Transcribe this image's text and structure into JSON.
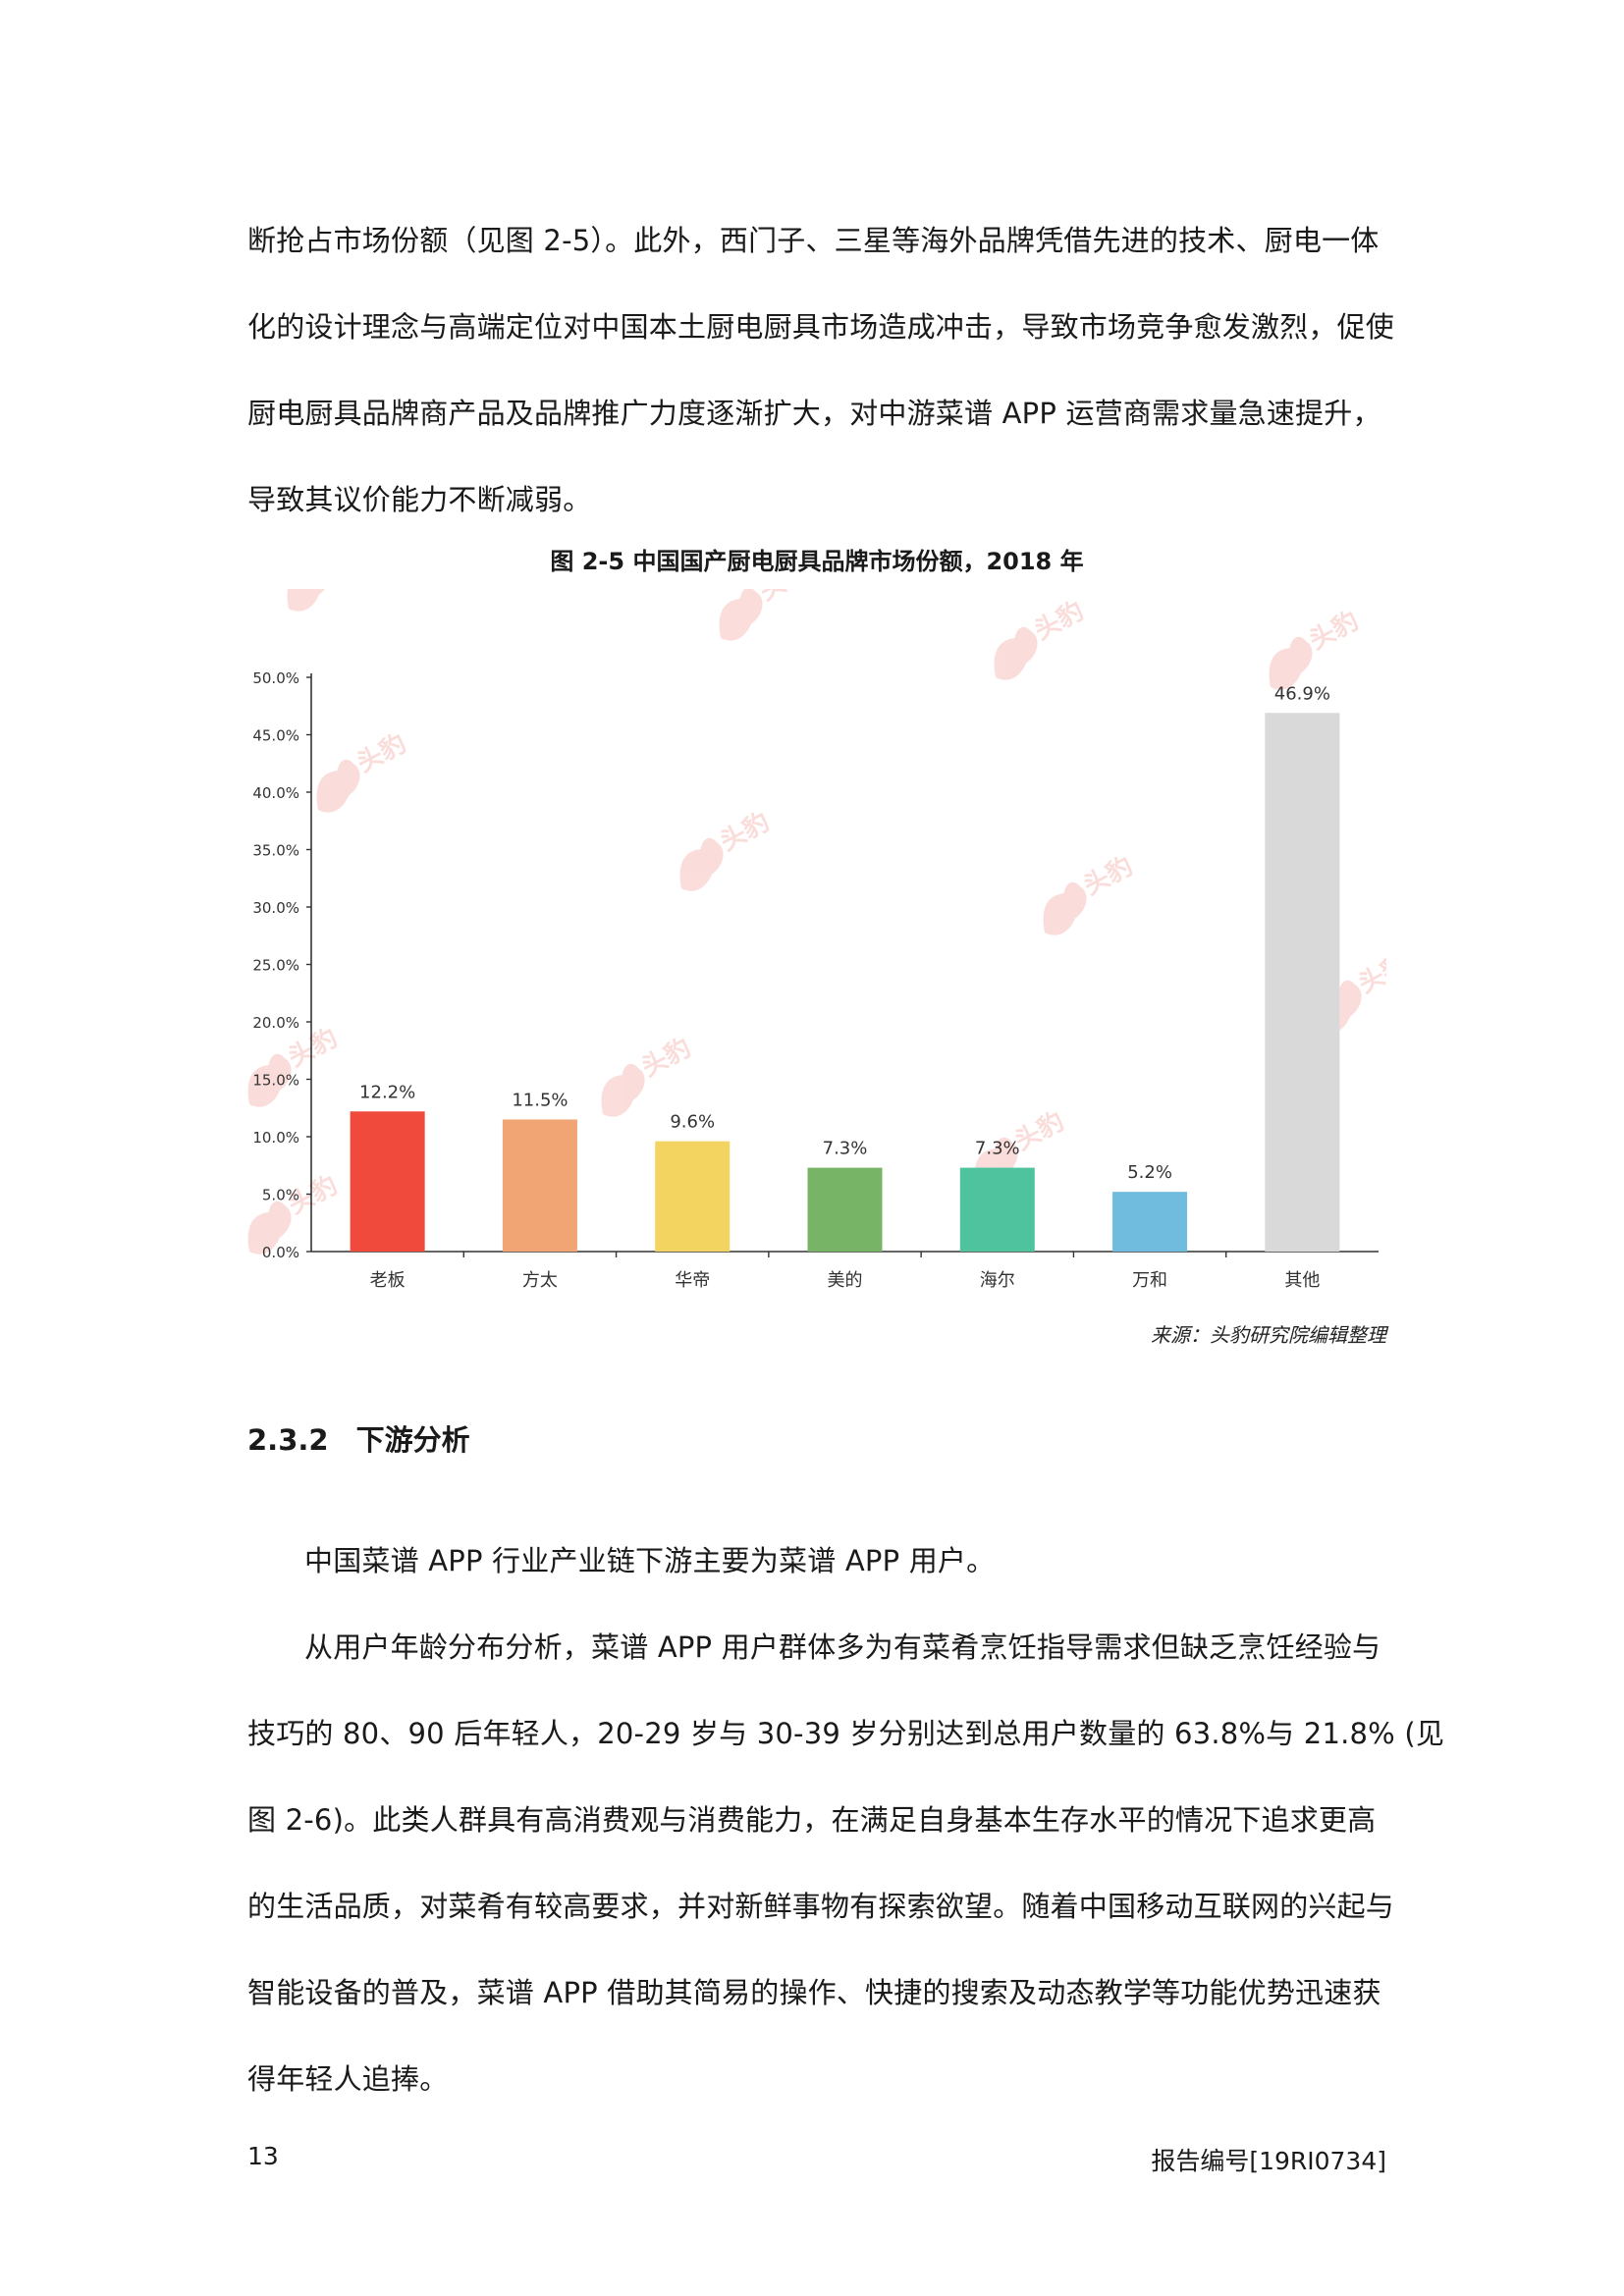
{
  "intro_paragraph": [
    "断抢占市场份额（见图 2-5）。此外，西门子、三星等海外品牌凭借先进的技术、厨电一体",
    "化的设计理念与高端定位对中国本土厨电厨具市场造成冲击，导致市场竞争愈发激烈，促使",
    "厨电厨具品牌商产品及品牌推广力度逐渐扩大，对中游菜谱 APP 运营商需求量急速提升，",
    "导致其议价能力不断减弱。"
  ],
  "figure": {
    "caption": "图 2-5 中国国产厨电厨具品牌市场份额，2018 年",
    "source": "来源：头豹研究院编辑整理",
    "watermark_text": "头豹"
  },
  "chart_data": {
    "type": "bar",
    "categories": [
      "老板",
      "方太",
      "华帝",
      "美的",
      "海尔",
      "万和",
      "其他"
    ],
    "values": [
      12.2,
      11.5,
      9.6,
      7.3,
      7.3,
      5.2,
      46.9
    ],
    "value_labels": [
      "12.2%",
      "11.5%",
      "9.6%",
      "7.3%",
      "7.3%",
      "5.2%",
      "46.9%"
    ],
    "colors": [
      "#f04a3c",
      "#f2a574",
      "#f4d460",
      "#78b466",
      "#4fc39e",
      "#6fbcdf",
      "#d9d9d9"
    ],
    "ylim": [
      0,
      50
    ],
    "yticks": [
      "0.0%",
      "5.0%",
      "10.0%",
      "15.0%",
      "20.0%",
      "25.0%",
      "30.0%",
      "35.0%",
      "40.0%",
      "45.0%",
      "50.0%"
    ],
    "ytick_values": [
      0,
      5,
      10,
      15,
      20,
      25,
      30,
      35,
      40,
      45,
      50
    ],
    "grid": false,
    "title": "",
    "xlabel": "",
    "ylabel": ""
  },
  "section": {
    "number": "2.3.2",
    "title": "下游分析"
  },
  "body_paragraphs": [
    {
      "indent_first": true,
      "lines": [
        "中国菜谱 APP 行业产业链下游主要为菜谱 APP 用户。"
      ]
    },
    {
      "indent_first": true,
      "lines": [
        "从用户年龄分布分析，菜谱 APP 用户群体多为有菜肴烹饪指导需求但缺乏烹饪经验与",
        "技巧的 80、90 后年轻人，20-29 岁与 30-39 岁分别达到总用户数量的 63.8%与 21.8% (见",
        "图 2-6)。此类人群具有高消费观与消费能力，在满足自身基本生存水平的情况下追求更高",
        "的生活品质，对菜肴有较高要求，并对新鲜事物有探索欲望。随着中国移动互联网的兴起与",
        "智能设备的普及，菜谱 APP 借助其简易的操作、快捷的搜索及动态教学等功能优势迅速获",
        "得年轻人追捧。"
      ]
    }
  ],
  "footer": {
    "page_number": "13",
    "report_code": "报告编号[19RI0734]"
  }
}
